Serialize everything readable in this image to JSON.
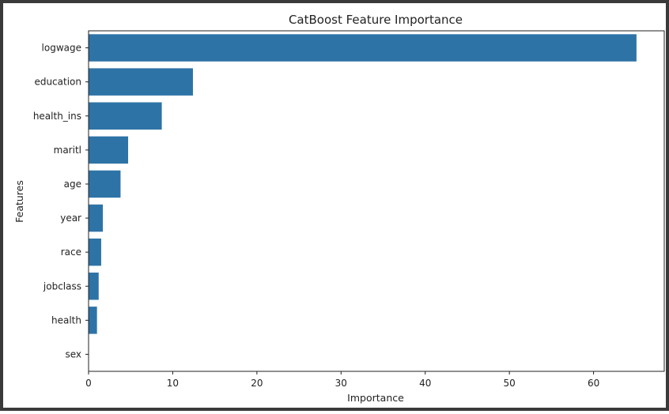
{
  "chart_data": {
    "type": "bar",
    "orientation": "horizontal",
    "title": "CatBoost Feature Importance",
    "xlabel": "Importance",
    "ylabel": "Features",
    "categories": [
      "logwage",
      "education",
      "health_ins",
      "maritl",
      "age",
      "year",
      "race",
      "jobclass",
      "health",
      "sex"
    ],
    "values": [
      65.1,
      12.4,
      8.7,
      4.7,
      3.8,
      1.7,
      1.5,
      1.2,
      1.0,
      0.0
    ],
    "xlim": [
      0,
      68.4
    ],
    "xticks": [
      0,
      10,
      20,
      30,
      40,
      50,
      60
    ],
    "grid": false,
    "bar_color": "#2e73a6"
  }
}
